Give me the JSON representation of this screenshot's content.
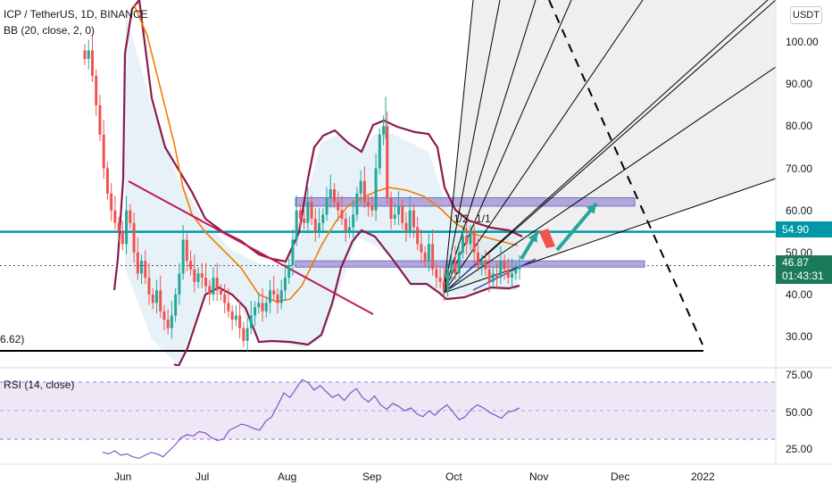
{
  "header": {
    "title": "ICP / TetherUS, 1D, BINANCE",
    "indicator": "BB (20, close, 2, 0)"
  },
  "currency_button": "USDT",
  "rsi_label": "RSI (14, close)",
  "colors": {
    "candle_up": "#26a69a",
    "candle_down": "#ef5350",
    "bb_band": "#8b1a4a",
    "bb_basis": "#f57c00",
    "horizontal_level": "#0097a7",
    "zone_fill": "#b39ddb",
    "fan": "#000000",
    "rsi_line": "#7e57c2",
    "arrow_up": "#26a69a",
    "arrow_down": "#ef5350"
  },
  "annotations": {
    "level_left_label": "6.62)",
    "fan_label": "1/1",
    "fan_label_2": "1/2"
  },
  "price_tags": {
    "resistance": "54.90",
    "last": "46.87",
    "countdown": "01:43:31"
  },
  "chart_data": [
    {
      "type": "candlestick",
      "title": "ICP / TetherUS, 1D, BINANCE",
      "x_ticks": [
        "Jun",
        "Jul",
        "Aug",
        "Sep",
        "Oct",
        "Nov",
        "Dec",
        "2022"
      ],
      "y_ticks": [
        "30.00",
        "40.00",
        "50.00",
        "60.00",
        "70.00",
        "80.00",
        "90.00",
        "100.00"
      ],
      "ylim": [
        23,
        110
      ],
      "grid": false,
      "series": [
        {
          "name": "ICP/USDT",
          "close_values": [
            96,
            98,
            92,
            85,
            78,
            70,
            64,
            60,
            57,
            55,
            52,
            60,
            57,
            50,
            45,
            48,
            44,
            40,
            38,
            41,
            36,
            34,
            32,
            35,
            40,
            45,
            53,
            48,
            46,
            43,
            45,
            44,
            42,
            40,
            44,
            41,
            40,
            38,
            36,
            34,
            35,
            32,
            29,
            32,
            35,
            37,
            38,
            36,
            38,
            41,
            40,
            38,
            41,
            44,
            47,
            53,
            60,
            58,
            57,
            62,
            58,
            55,
            57,
            59,
            63,
            65,
            62,
            60,
            58,
            55,
            56,
            59,
            64,
            67,
            62,
            61,
            60,
            70,
            78,
            80,
            63,
            58,
            59,
            61,
            57,
            55,
            60,
            56,
            52,
            50,
            48,
            52,
            46,
            44,
            43,
            41,
            46,
            48,
            45,
            50,
            54,
            52,
            55,
            50,
            47,
            48,
            46,
            43,
            45,
            44,
            48,
            46,
            44,
            45,
            46,
            46.87
          ],
          "high": 109,
          "low": 27
        }
      ],
      "horizontal_levels": [
        54.9,
        26.62
      ],
      "zones": [
        [
          61,
          63
        ],
        [
          46.5,
          48
        ]
      ],
      "fan_lines": 9,
      "projection": "dashed",
      "indicator": "BB (20, close, 2, 0)"
    },
    {
      "type": "line",
      "title": "RSI (14, close)",
      "y_ticks": [
        "25.00",
        "50.00",
        "75.00"
      ],
      "ylim": [
        15,
        80
      ],
      "bands": [
        30,
        70
      ],
      "series": [
        {
          "name": "RSI",
          "values": [
            23,
            22,
            24,
            21,
            22,
            20,
            19,
            21,
            23,
            22,
            20,
            24,
            28,
            33,
            35,
            34,
            37,
            36,
            33,
            31,
            32,
            38,
            40,
            42,
            41,
            39,
            38,
            44,
            47,
            55,
            63,
            60,
            66,
            72,
            70,
            65,
            68,
            64,
            60,
            62,
            58,
            63,
            66,
            60,
            57,
            61,
            55,
            52,
            56,
            54,
            51,
            53,
            49,
            47,
            51,
            48,
            52,
            55,
            50,
            45,
            47,
            52,
            55,
            53,
            50,
            48,
            46,
            50,
            51,
            53
          ]
        }
      ]
    }
  ]
}
